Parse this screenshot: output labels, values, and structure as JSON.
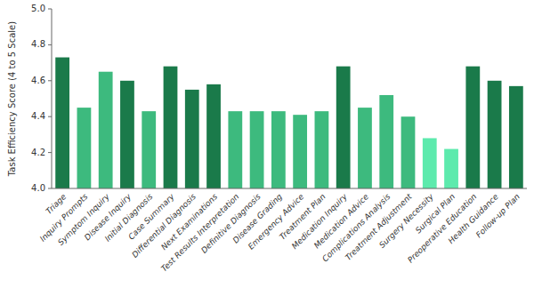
{
  "chart_data": {
    "type": "bar",
    "categories": [
      "Triage",
      "Inquiry Prompts",
      "Symptom Inquiry",
      "Disease Inquiry",
      "Initial Diagnosis",
      "Case Summary",
      "Differential Diagnosis",
      "Next Examinations",
      "Test Results Interpretation",
      "Definitive Diagnosis",
      "Disease Grading",
      "Emergency Advice",
      "Treatment Plan",
      "Medication Inquiry",
      "Medication Advice",
      "Complications Analysis",
      "Treatment Adjustment",
      "Surgery Necessity",
      "Surgical Plan",
      "Preoperative Education",
      "Health Guidance",
      "Follow-up Plan"
    ],
    "values": [
      4.73,
      4.45,
      4.65,
      4.6,
      4.43,
      4.68,
      4.55,
      4.58,
      4.43,
      4.43,
      4.43,
      4.41,
      4.43,
      4.68,
      4.45,
      4.52,
      4.4,
      4.28,
      4.22,
      4.68,
      4.6,
      4.57
    ],
    "colors": [
      "#1a7a4a",
      "#3dba7e",
      "#3dba7e",
      "#1a7a4a",
      "#3dba7e",
      "#1a7a4a",
      "#1a7a4a",
      "#1a7a4a",
      "#3dba7e",
      "#3dba7e",
      "#3dba7e",
      "#3dba7e",
      "#3dba7e",
      "#1a7a4a",
      "#3dba7e",
      "#3dba7e",
      "#3dba7e",
      "#5deaad",
      "#5deaad",
      "#1a7a4a",
      "#1a7a4a",
      "#1a7a4a"
    ],
    "ylabel": "Task Efficiency Score (4 to 5 Scale)",
    "ylim": [
      4.0,
      5.0
    ],
    "yticks": [
      {
        "value": 4.0,
        "label": "4.0"
      },
      4.2,
      4.4,
      4.6,
      4.8,
      {
        "value": 5.0,
        "label": "5.0"
      }
    ],
    "grid": false
  }
}
